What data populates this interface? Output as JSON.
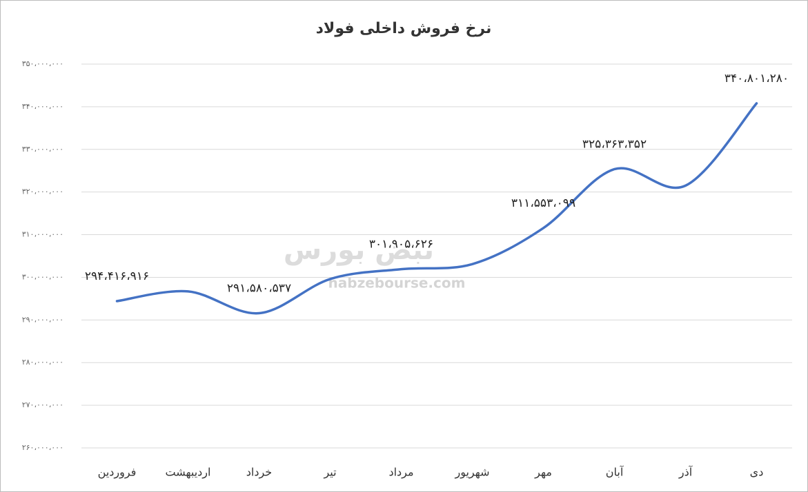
{
  "chart_data": {
    "type": "line",
    "title": "نرخ فروش داخلی فولاد",
    "watermark": "nabzebourse.com",
    "watermark_logo": "نبض بورس",
    "categories": [
      "فروردین",
      "اردیبهشت",
      "خرداد",
      "تیر",
      "مرداد",
      "شهریور",
      "مهر",
      "آبان",
      "آذر",
      "دی"
    ],
    "series": [
      {
        "name": "نرخ فروش",
        "color": "#4472c4",
        "values": [
          294416916,
          296700000,
          291580537,
          299600000,
          301905626,
          303100000,
          311553099,
          325363352,
          321500000,
          340801280
        ],
        "value_labels": [
          "۲۹۴،۴۱۶،۹۱۶",
          null,
          "۲۹۱،۵۸۰،۵۳۷",
          null,
          "۳۰۱،۹۰۵،۶۲۶",
          null,
          "۳۱۱،۵۵۳،۰۹۹",
          "۳۲۵،۳۶۳،۳۵۲",
          null,
          "۳۴۰،۸۰۱،۲۸۰"
        ]
      }
    ],
    "ylim": [
      260000000,
      350000000
    ],
    "yticks": [
      {
        "value": 260000000,
        "label": "۲۶۰،۰۰۰،۰۰۰"
      },
      {
        "value": 270000000,
        "label": "۲۷۰،۰۰۰،۰۰۰"
      },
      {
        "value": 280000000,
        "label": "۲۸۰،۰۰۰،۰۰۰"
      },
      {
        "value": 290000000,
        "label": "۲۹۰،۰۰۰،۰۰۰"
      },
      {
        "value": 300000000,
        "label": "۳۰۰،۰۰۰،۰۰۰"
      },
      {
        "value": 310000000,
        "label": "۳۱۰،۰۰۰،۰۰۰"
      },
      {
        "value": 320000000,
        "label": "۳۲۰،۰۰۰،۰۰۰"
      },
      {
        "value": 330000000,
        "label": "۳۳۰،۰۰۰،۰۰۰"
      },
      {
        "value": 340000000,
        "label": "۳۴۰،۰۰۰،۰۰۰"
      },
      {
        "value": 350000000,
        "label": "۳۵۰،۰۰۰،۰۰۰"
      }
    ],
    "grid": true
  }
}
